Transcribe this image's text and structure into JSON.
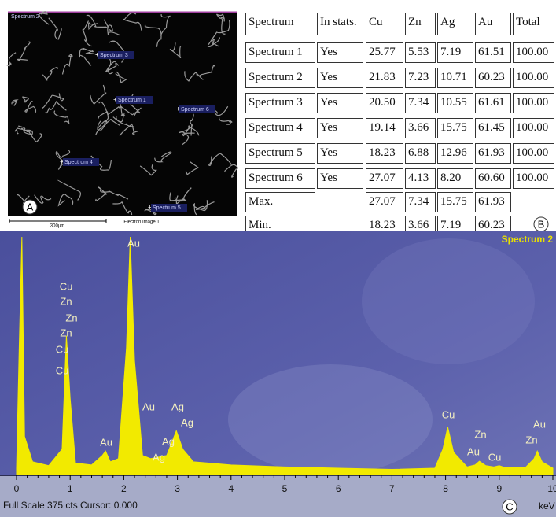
{
  "panel_a": {
    "letter": "A",
    "labels": [
      "Spectrum 2",
      "Spectrum 3",
      "Spectrum 1",
      "Spectrum 6",
      "Spectrum 4",
      "Spectrum 5"
    ],
    "scale_bar": "300µm",
    "caption": "Electron Image 1"
  },
  "table": {
    "letter": "B",
    "header": [
      "Spectrum",
      "In stats.",
      "Cu",
      "Zn",
      "Ag",
      "Au",
      "Total"
    ],
    "rows": [
      [
        "Spectrum 1",
        "Yes",
        "25.77",
        "5.53",
        "7.19",
        "61.51",
        "100.00"
      ],
      [
        "Spectrum 2",
        "Yes",
        "21.83",
        "7.23",
        "10.71",
        "60.23",
        "100.00"
      ],
      [
        "Spectrum 3",
        "Yes",
        "20.50",
        "7.34",
        "10.55",
        "61.61",
        "100.00"
      ],
      [
        "Spectrum 4",
        "Yes",
        "19.14",
        "3.66",
        "15.75",
        "61.45",
        "100.00"
      ],
      [
        "Spectrum 5",
        "Yes",
        "18.23",
        "6.88",
        "12.96",
        "61.93",
        "100.00"
      ],
      [
        "Spectrum 6",
        "Yes",
        "27.07",
        "4.13",
        "8.20",
        "60.60",
        "100.00"
      ]
    ],
    "summary": [
      {
        "label": "Max.",
        "values": [
          "27.07",
          "7.34",
          "15.75",
          "61.93"
        ]
      },
      {
        "label": "Min.",
        "values": [
          "18.23",
          "3.66",
          "7.19",
          "60.23"
        ]
      }
    ]
  },
  "chart_data": {
    "type": "line",
    "title": "Spectrum 2",
    "letter": "C",
    "x_label": "keV",
    "footer": "Full Scale 375 cts Cursor: 0.000",
    "x": [
      0,
      0.05,
      0.1,
      0.15,
      0.3,
      0.6,
      0.85,
      0.93,
      1.0,
      1.1,
      1.4,
      1.6,
      1.66,
      1.75,
      1.9,
      2.05,
      2.12,
      2.2,
      2.35,
      2.5,
      2.8,
      2.98,
      3.1,
      3.3,
      4,
      5,
      6,
      7,
      7.8,
      7.95,
      8.04,
      8.15,
      8.4,
      8.55,
      8.63,
      8.75,
      8.9,
      9.0,
      9.1,
      9.5,
      9.65,
      9.71,
      9.8,
      10
    ],
    "series": [
      {
        "name": "Spectrum 2",
        "color": "#f2ea00",
        "values": [
          10,
          200,
          375,
          60,
          20,
          14,
          40,
          219,
          120,
          18,
          15,
          30,
          37,
          20,
          25,
          200,
          375,
          180,
          30,
          25,
          30,
          69,
          40,
          20,
          15,
          12,
          10,
          8,
          10,
          40,
          75,
          35,
          12,
          15,
          21,
          14,
          12,
          14,
          11,
          12,
          25,
          37,
          20,
          10
        ]
      }
    ],
    "xlim": [
      0,
      10
    ],
    "xticks": [
      0,
      1,
      2,
      3,
      4,
      5,
      6,
      7,
      8,
      9,
      10
    ],
    "ylim": [
      0,
      375
    ],
    "annotations": [
      "Cu",
      "Zn",
      "Zn",
      "Zn",
      "Cu",
      "Cu",
      "Au",
      "Au",
      "Au",
      "Ag",
      "Ag",
      "Ag",
      "Ag",
      "Cu",
      "Zn",
      "Au",
      "Cu",
      "Au",
      "Zn"
    ]
  }
}
